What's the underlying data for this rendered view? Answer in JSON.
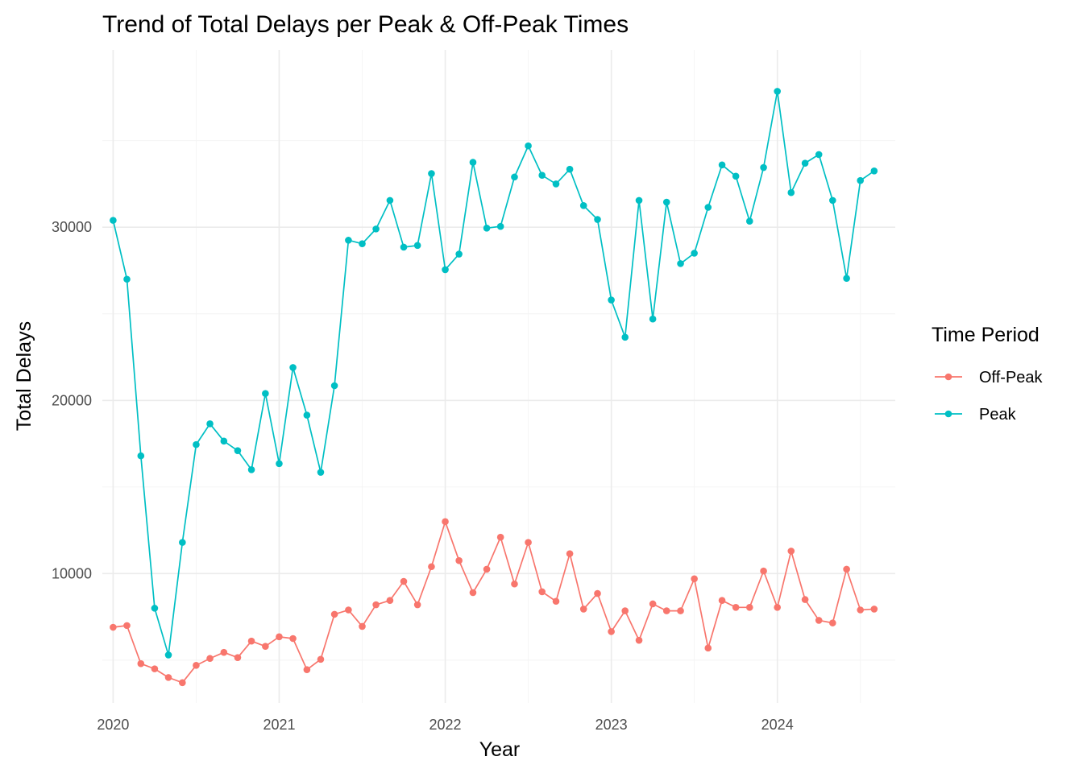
{
  "chart_data": {
    "type": "line",
    "title": "Trend of Total Delays per Peak & Off-Peak Times",
    "xlabel": "Year",
    "ylabel": "Total Delays",
    "xlim": [
      2019.935,
      2024.71
    ],
    "ylim": [
      2530,
      40240
    ],
    "x_ticks": [
      2020,
      2021,
      2022,
      2023,
      2024
    ],
    "x_tick_labels": [
      "2020",
      "2021",
      "2022",
      "2023",
      "2024"
    ],
    "y_ticks": [
      10000,
      20000,
      30000
    ],
    "y_tick_labels": [
      "10000",
      "20000",
      "30000"
    ],
    "y_minor_ticks": [
      5000,
      15000,
      25000,
      35000
    ],
    "grid": true,
    "legend": {
      "title": "Time Period",
      "position": "right"
    },
    "series": [
      {
        "name": "Off-Peak",
        "color": "#F8766D",
        "x": [
          2020.0,
          2020.083,
          2020.167,
          2020.25,
          2020.333,
          2020.417,
          2020.5,
          2020.583,
          2020.667,
          2020.75,
          2020.833,
          2020.917,
          2021.0,
          2021.083,
          2021.167,
          2021.25,
          2021.333,
          2021.417,
          2021.5,
          2021.583,
          2021.667,
          2021.75,
          2021.833,
          2021.917,
          2022.0,
          2022.083,
          2022.167,
          2022.25,
          2022.333,
          2022.417,
          2022.5,
          2022.583,
          2022.667,
          2022.75,
          2022.833,
          2022.917,
          2023.0,
          2023.083,
          2023.167,
          2023.25,
          2023.333,
          2023.417,
          2023.5,
          2023.583,
          2023.667,
          2023.75,
          2023.833,
          2023.917,
          2024.0,
          2024.083,
          2024.167,
          2024.25,
          2024.333,
          2024.417,
          2024.5,
          2024.583
        ],
        "values": [
          6900,
          7000,
          4800,
          4500,
          4000,
          3700,
          4700,
          5100,
          5450,
          5150,
          6100,
          5800,
          6350,
          6250,
          4450,
          5050,
          7650,
          7900,
          6950,
          8200,
          8450,
          9550,
          8200,
          10400,
          13000,
          10750,
          8900,
          10250,
          12100,
          9400,
          11800,
          8950,
          8400,
          11150,
          7950,
          8850,
          6650,
          7850,
          6150,
          8250,
          7850,
          7850,
          9700,
          5700,
          8450,
          8050,
          8050,
          10150,
          8050,
          11300,
          8500,
          7300,
          7150,
          10250,
          7900,
          7950
        ]
      },
      {
        "name": "Peak",
        "color": "#00BFC4",
        "x": [
          2020.0,
          2020.083,
          2020.167,
          2020.25,
          2020.333,
          2020.417,
          2020.5,
          2020.583,
          2020.667,
          2020.75,
          2020.833,
          2020.917,
          2021.0,
          2021.083,
          2021.167,
          2021.25,
          2021.333,
          2021.417,
          2021.5,
          2021.583,
          2021.667,
          2021.75,
          2021.833,
          2021.917,
          2022.0,
          2022.083,
          2022.167,
          2022.25,
          2022.333,
          2022.417,
          2022.5,
          2022.583,
          2022.667,
          2022.75,
          2022.833,
          2022.917,
          2023.0,
          2023.083,
          2023.167,
          2023.25,
          2023.333,
          2023.417,
          2023.5,
          2023.583,
          2023.667,
          2023.75,
          2023.833,
          2023.917,
          2024.0,
          2024.083,
          2024.167,
          2024.25,
          2024.333,
          2024.417,
          2024.5,
          2024.583
        ],
        "values": [
          30400,
          27000,
          16800,
          8000,
          5300,
          11800,
          17450,
          18650,
          17650,
          17100,
          16000,
          20400,
          16350,
          21900,
          19150,
          15850,
          20850,
          29250,
          29050,
          29900,
          31550,
          28850,
          28950,
          33100,
          27550,
          28450,
          33750,
          29950,
          30050,
          32900,
          34700,
          33000,
          32500,
          33350,
          31250,
          30450,
          25800,
          23650,
          31550,
          24700,
          31450,
          27900,
          28500,
          31150,
          33600,
          32950,
          30350,
          33450,
          37850,
          32000,
          33700,
          34200,
          31550,
          27050,
          32700,
          33250
        ]
      }
    ]
  }
}
